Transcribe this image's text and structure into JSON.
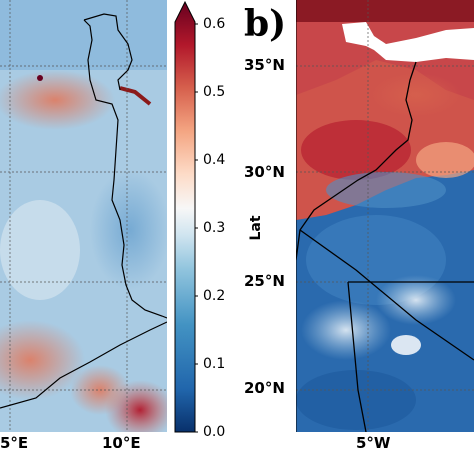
{
  "panel_b_label": "b)",
  "left_map": {
    "x_ticks": [
      "5°E",
      "10°E"
    ]
  },
  "right_map": {
    "y_label": "Lat",
    "y_ticks": [
      "35°N",
      "30°N",
      "25°N",
      "20°N"
    ],
    "x_ticks": [
      "5°W"
    ]
  },
  "colorbar": {
    "ticks": [
      "0.6",
      "0.5",
      "0.4",
      "0.3",
      "0.2",
      "0.1",
      "0.0"
    ],
    "range": [
      0.0,
      0.6
    ],
    "colors": [
      "#08306b",
      "#2166ac",
      "#4393c3",
      "#92c5de",
      "#d1e5f0",
      "#f7f7f7",
      "#fddbc7",
      "#f4a582",
      "#d6604d",
      "#b2182b",
      "#67001f"
    ]
  }
}
